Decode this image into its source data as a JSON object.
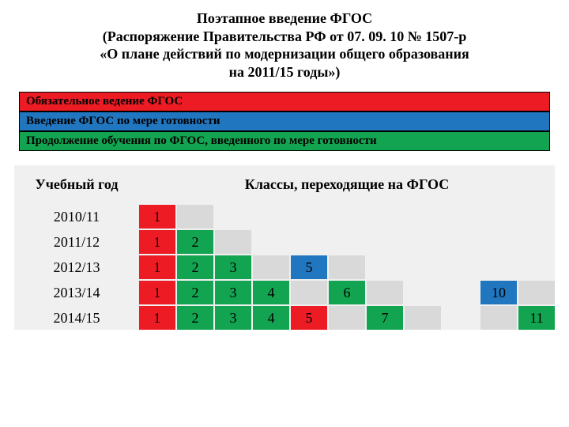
{
  "colors": {
    "red": "#ed1c24",
    "blue": "#2176c0",
    "green": "#12a450",
    "gray": "#d9d9d9",
    "light_bg": "#f0f0f0",
    "white": "#ffffff",
    "black": "#000000"
  },
  "title": {
    "line1": "Поэтапное введение ФГОС",
    "line2": "(Распоряжение Правительства РФ от 07. 09. 10 № 1507-р",
    "line3": "«О плане действий по модернизации общего образования",
    "line4": "на 2011/15 годы»)"
  },
  "legend": [
    {
      "label": "Обязательное ведение ФГОС",
      "color_key": "red"
    },
    {
      "label": "Введение ФГОС по мере готовности",
      "color_key": "blue"
    },
    {
      "label": "Продолжение обучения по ФГОС, введенного по мере готовности",
      "color_key": "green"
    }
  ],
  "table": {
    "year_header": "Учебный год",
    "classes_header": "Классы, переходящие на ФГОС",
    "num_cols": 11,
    "rows": [
      {
        "year": "2010/11",
        "cells": [
          {
            "value": "1",
            "color_key": "red"
          },
          {
            "value": "",
            "color_key": "gray"
          },
          {
            "value": "",
            "color_key": null
          },
          {
            "value": "",
            "color_key": null
          },
          {
            "value": "",
            "color_key": null
          },
          {
            "value": "",
            "color_key": null
          },
          {
            "value": "",
            "color_key": null
          },
          {
            "value": "",
            "color_key": null
          },
          {
            "value": "",
            "color_key": null
          },
          {
            "value": "",
            "color_key": null
          },
          {
            "value": "",
            "color_key": null
          }
        ]
      },
      {
        "year": "2011/12",
        "cells": [
          {
            "value": "1",
            "color_key": "red"
          },
          {
            "value": "2",
            "color_key": "green"
          },
          {
            "value": "",
            "color_key": "gray"
          },
          {
            "value": "",
            "color_key": null
          },
          {
            "value": "",
            "color_key": null
          },
          {
            "value": "",
            "color_key": null
          },
          {
            "value": "",
            "color_key": null
          },
          {
            "value": "",
            "color_key": null
          },
          {
            "value": "",
            "color_key": null
          },
          {
            "value": "",
            "color_key": null
          },
          {
            "value": "",
            "color_key": null
          }
        ]
      },
      {
        "year": "2012/13",
        "cells": [
          {
            "value": "1",
            "color_key": "red"
          },
          {
            "value": "2",
            "color_key": "green"
          },
          {
            "value": "3",
            "color_key": "green"
          },
          {
            "value": "",
            "color_key": "gray"
          },
          {
            "value": "5",
            "color_key": "blue"
          },
          {
            "value": "",
            "color_key": "gray"
          },
          {
            "value": "",
            "color_key": null
          },
          {
            "value": "",
            "color_key": null
          },
          {
            "value": "",
            "color_key": null
          },
          {
            "value": "",
            "color_key": null
          },
          {
            "value": "",
            "color_key": null
          }
        ]
      },
      {
        "year": "2013/14",
        "cells": [
          {
            "value": "1",
            "color_key": "red"
          },
          {
            "value": "2",
            "color_key": "green"
          },
          {
            "value": "3",
            "color_key": "green"
          },
          {
            "value": "4",
            "color_key": "green"
          },
          {
            "value": "",
            "color_key": "gray"
          },
          {
            "value": "6",
            "color_key": "green"
          },
          {
            "value": "",
            "color_key": "gray"
          },
          {
            "value": "",
            "color_key": null
          },
          {
            "value": "",
            "color_key": null
          },
          {
            "value": "10",
            "color_key": "blue"
          },
          {
            "value": "",
            "color_key": "gray"
          }
        ]
      },
      {
        "year": "2014/15",
        "cells": [
          {
            "value": "1",
            "color_key": "red"
          },
          {
            "value": "2",
            "color_key": "green"
          },
          {
            "value": "3",
            "color_key": "green"
          },
          {
            "value": "4",
            "color_key": "green"
          },
          {
            "value": "5",
            "color_key": "red"
          },
          {
            "value": "",
            "color_key": "gray"
          },
          {
            "value": "7",
            "color_key": "green"
          },
          {
            "value": "",
            "color_key": "gray"
          },
          {
            "value": "",
            "color_key": null
          },
          {
            "value": "",
            "color_key": "gray"
          },
          {
            "value": "11",
            "color_key": "green"
          }
        ]
      }
    ]
  }
}
